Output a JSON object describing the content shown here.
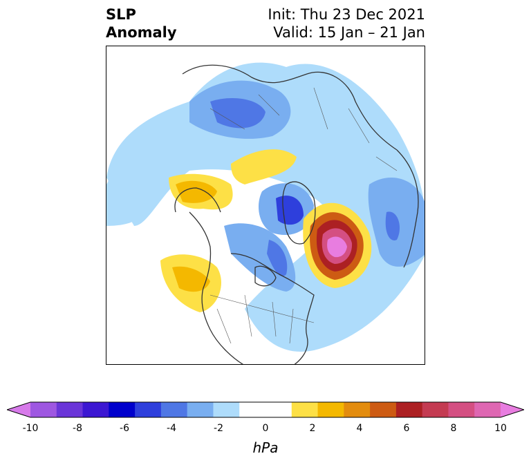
{
  "header": {
    "variable": "SLP",
    "field": "Anomaly",
    "init": "Init: Thu 23 Dec 2021",
    "valid": "Valid: 15 Jan – 21 Jan"
  },
  "colorbar": {
    "unit": "hPa",
    "min": -10,
    "max": 10,
    "step": 1,
    "tick_labels": [
      "-10",
      "-8",
      "-6",
      "-4",
      "-2",
      "0",
      "2",
      "4",
      "6",
      "8",
      "10"
    ],
    "colors": [
      "#d77aea",
      "#9e57e1",
      "#6a35d8",
      "#3c17d2",
      "#0000cc",
      "#2e3fdc",
      "#4f77e5",
      "#79aef0",
      "#aedcfb",
      "#ffffff",
      "#ffffff",
      "#fde046",
      "#f4b800",
      "#e38c0e",
      "#cd5b13",
      "#ac2023",
      "#c43b52",
      "#d44f82",
      "#de67b2",
      "#e87de0"
    ]
  },
  "map": {
    "projection": "north polar stereographic",
    "anomaly_features": [
      {
        "label": "strong positive anomaly",
        "region": "North Atlantic / Greenland Sea",
        "peak_hpa": 10
      },
      {
        "label": "negative anomaly",
        "region": "Arctic Ocean north of Greenland",
        "peak_hpa": -6
      },
      {
        "label": "negative anomaly",
        "region": "Canadian Arctic / Hudson Bay",
        "peak_hpa": -5
      },
      {
        "label": "negative anomaly",
        "region": "Siberia",
        "peak_hpa": -4
      },
      {
        "label": "positive anomaly",
        "region": "Gulf of Alaska / NE Pacific",
        "peak_hpa": 4
      },
      {
        "label": "positive anomaly",
        "region": "Bering Sea",
        "peak_hpa": 2
      },
      {
        "label": "negative anomaly",
        "region": "Europe",
        "peak_hpa": -4
      }
    ]
  }
}
